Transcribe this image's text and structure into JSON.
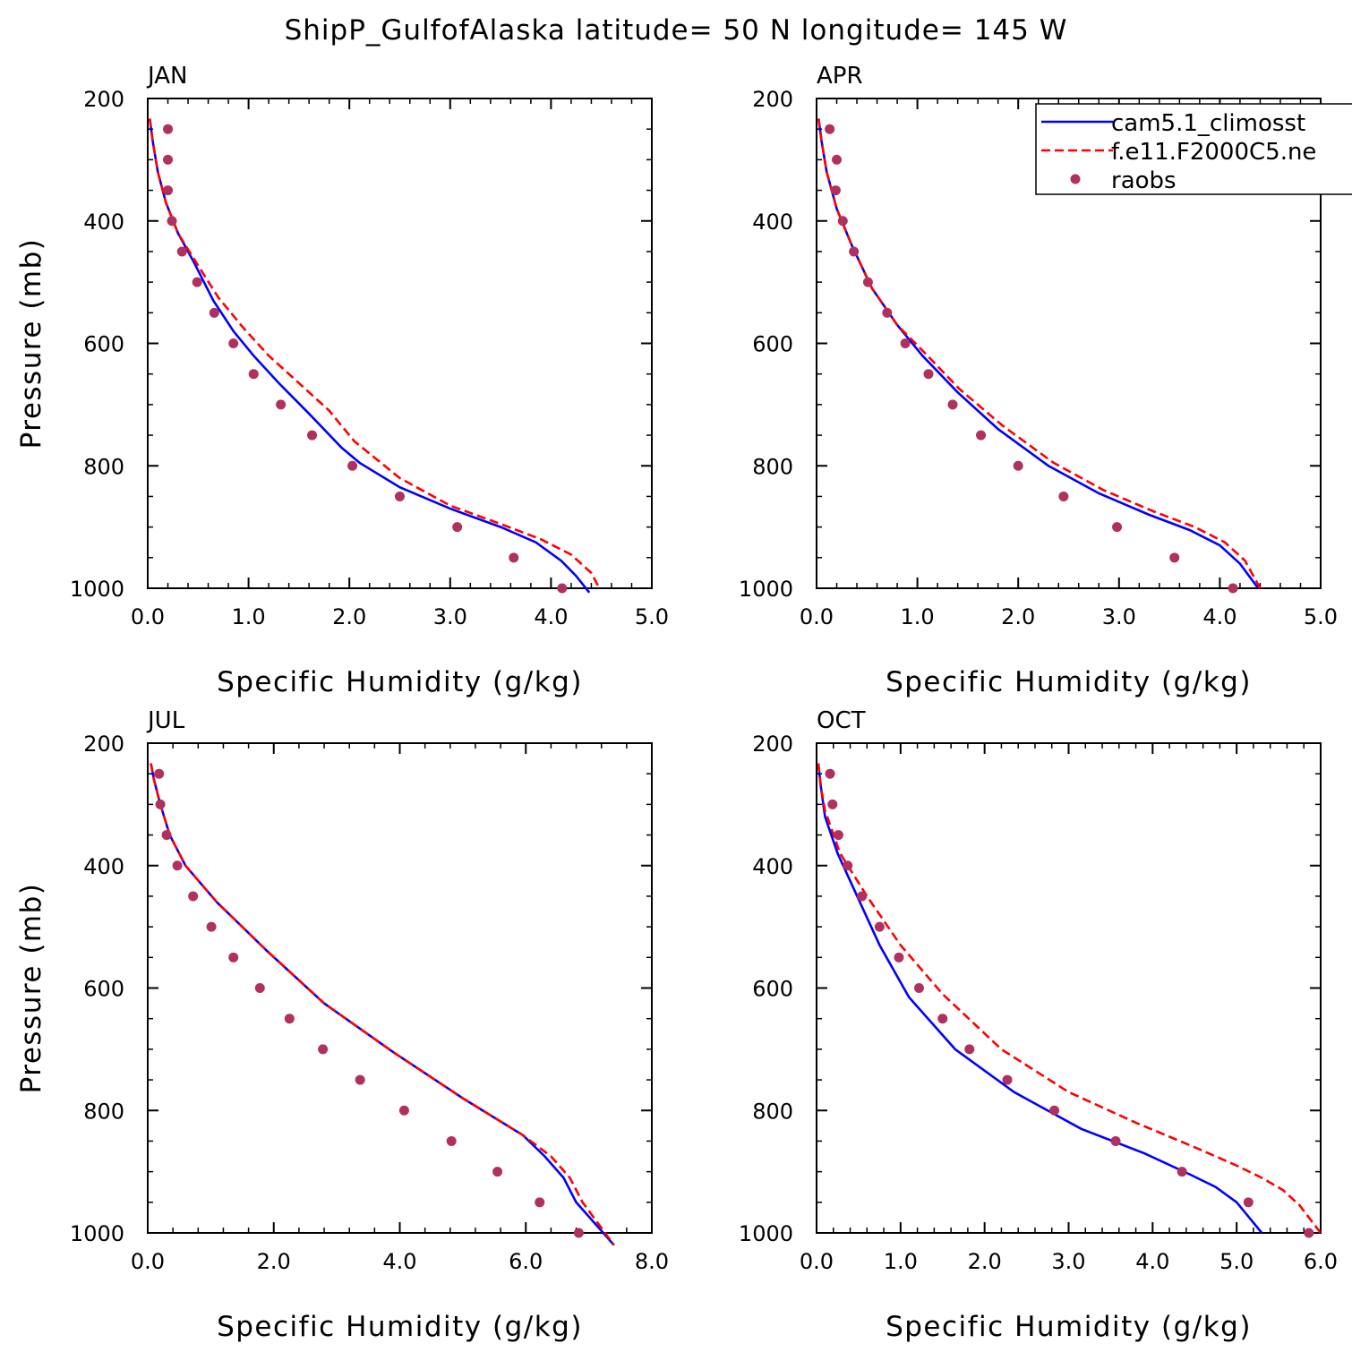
{
  "title": "ShipP_GulfofAlaska  latitude= 50 N longitude= 145 W",
  "legend": {
    "entries": [
      {
        "label": "cam5.1_climosst",
        "style": "solid",
        "color": "#0000ff"
      },
      {
        "label": "f.e11.F2000C5.ne",
        "style": "dashed",
        "color": "#ff0000"
      },
      {
        "label": "raobs",
        "style": "marker",
        "color": "#b03060"
      }
    ]
  },
  "chart_data": [
    {
      "type": "line",
      "panel": "JAN",
      "xlabel": "Specific Humidity (g/kg)",
      "ylabel": "Pressure (mb)",
      "xlim": [
        0,
        5
      ],
      "ylim": [
        200,
        1000
      ],
      "y_inverted": true,
      "xticks": [
        "0.0",
        "1.0",
        "2.0",
        "3.0",
        "4.0",
        "5.0"
      ],
      "yticks": [
        "200",
        "400",
        "600",
        "800",
        "1000"
      ],
      "series": [
        {
          "name": "cam5.1_climosst",
          "color": "#0000ff",
          "style": "solid",
          "points": [
            [
              0.02,
              233
            ],
            [
              0.05,
              270
            ],
            [
              0.1,
              320
            ],
            [
              0.18,
              370
            ],
            [
              0.3,
              420
            ],
            [
              0.45,
              465
            ],
            [
              0.65,
              530
            ],
            [
              0.85,
              580
            ],
            [
              1.05,
              620
            ],
            [
              1.3,
              665
            ],
            [
              1.6,
              715
            ],
            [
              1.92,
              770
            ],
            [
              2.1,
              795
            ],
            [
              2.5,
              835
            ],
            [
              3.0,
              870
            ],
            [
              3.5,
              900
            ],
            [
              3.85,
              925
            ],
            [
              4.1,
              955
            ],
            [
              4.25,
              980
            ],
            [
              4.38,
              1007
            ]
          ]
        },
        {
          "name": "f.e11.F2000C5.ne",
          "color": "#ff0000",
          "style": "dashed",
          "points": [
            [
              0.02,
              233
            ],
            [
              0.05,
              270
            ],
            [
              0.1,
              320
            ],
            [
              0.18,
              370
            ],
            [
              0.3,
              420
            ],
            [
              0.47,
              465
            ],
            [
              0.7,
              525
            ],
            [
              0.95,
              575
            ],
            [
              1.2,
              620
            ],
            [
              1.5,
              665
            ],
            [
              1.8,
              710
            ],
            [
              2.05,
              760
            ],
            [
              2.5,
              820
            ],
            [
              3.0,
              865
            ],
            [
              3.5,
              895
            ],
            [
              3.9,
              920
            ],
            [
              4.2,
              945
            ],
            [
              4.4,
              975
            ],
            [
              4.48,
              1000
            ]
          ]
        },
        {
          "name": "raobs",
          "color": "#b03060",
          "style": "marker",
          "points": [
            [
              0.2,
              250
            ],
            [
              0.2,
              300
            ],
            [
              0.2,
              350
            ],
            [
              0.24,
              400
            ],
            [
              0.34,
              450
            ],
            [
              0.49,
              500
            ],
            [
              0.66,
              550
            ],
            [
              0.85,
              600
            ],
            [
              1.05,
              650
            ],
            [
              1.32,
              700
            ],
            [
              1.63,
              750
            ],
            [
              2.03,
              800
            ],
            [
              2.5,
              850
            ],
            [
              3.07,
              900
            ],
            [
              3.63,
              950
            ],
            [
              4.11,
              1000
            ]
          ]
        }
      ]
    },
    {
      "type": "line",
      "panel": "APR",
      "xlabel": "Specific Humidity (g/kg)",
      "ylabel": "",
      "xlim": [
        0,
        5
      ],
      "ylim": [
        200,
        1000
      ],
      "y_inverted": true,
      "xticks": [
        "0.0",
        "1.0",
        "2.0",
        "3.0",
        "4.0",
        "5.0"
      ],
      "yticks": [
        "200",
        "400",
        "600",
        "800",
        "1000"
      ],
      "series": [
        {
          "name": "cam5.1_climosst",
          "color": "#0000ff",
          "style": "solid",
          "points": [
            [
              0.02,
              233
            ],
            [
              0.05,
              270
            ],
            [
              0.1,
              320
            ],
            [
              0.2,
              380
            ],
            [
              0.35,
              440
            ],
            [
              0.55,
              510
            ],
            [
              0.8,
              570
            ],
            [
              1.05,
              620
            ],
            [
              1.4,
              680
            ],
            [
              1.8,
              740
            ],
            [
              2.3,
              800
            ],
            [
              2.8,
              845
            ],
            [
              3.3,
              880
            ],
            [
              3.7,
              905
            ],
            [
              4.0,
              930
            ],
            [
              4.2,
              960
            ],
            [
              4.38,
              1000
            ]
          ]
        },
        {
          "name": "f.e11.F2000C5.ne",
          "color": "#ff0000",
          "style": "dashed",
          "points": [
            [
              0.02,
              233
            ],
            [
              0.05,
              270
            ],
            [
              0.1,
              320
            ],
            [
              0.2,
              380
            ],
            [
              0.35,
              440
            ],
            [
              0.55,
              510
            ],
            [
              0.8,
              570
            ],
            [
              1.07,
              615
            ],
            [
              1.42,
              675
            ],
            [
              1.85,
              735
            ],
            [
              2.35,
              795
            ],
            [
              2.85,
              840
            ],
            [
              3.35,
              875
            ],
            [
              3.75,
              900
            ],
            [
              4.05,
              925
            ],
            [
              4.25,
              955
            ],
            [
              4.4,
              1000
            ]
          ]
        },
        {
          "name": "raobs",
          "color": "#b03060",
          "style": "marker",
          "points": [
            [
              0.13,
              250
            ],
            [
              0.2,
              300
            ],
            [
              0.19,
              350
            ],
            [
              0.26,
              400
            ],
            [
              0.37,
              450
            ],
            [
              0.51,
              500
            ],
            [
              0.7,
              550
            ],
            [
              0.88,
              600
            ],
            [
              1.11,
              650
            ],
            [
              1.35,
              700
            ],
            [
              1.63,
              750
            ],
            [
              2.0,
              800
            ],
            [
              2.45,
              850
            ],
            [
              2.98,
              900
            ],
            [
              3.55,
              950
            ],
            [
              4.13,
              1000
            ]
          ]
        }
      ]
    },
    {
      "type": "line",
      "panel": "JUL",
      "xlabel": "Specific Humidity (g/kg)",
      "ylabel": "Pressure (mb)",
      "xlim": [
        0,
        8
      ],
      "ylim": [
        200,
        1000
      ],
      "y_inverted": true,
      "xticks": [
        "0.0",
        "2.0",
        "4.0",
        "6.0",
        "8.0"
      ],
      "yticks": [
        "200",
        "400",
        "600",
        "800",
        "1000"
      ],
      "series": [
        {
          "name": "cam5.1_climosst",
          "color": "#0000ff",
          "style": "solid",
          "points": [
            [
              0.05,
              233
            ],
            [
              0.1,
              260
            ],
            [
              0.2,
              300
            ],
            [
              0.35,
              350
            ],
            [
              0.6,
              400
            ],
            [
              1.1,
              460
            ],
            [
              1.9,
              540
            ],
            [
              2.8,
              625
            ],
            [
              3.9,
              705
            ],
            [
              5.0,
              780
            ],
            [
              5.95,
              840
            ],
            [
              6.3,
              875
            ],
            [
              6.6,
              910
            ],
            [
              6.8,
              950
            ],
            [
              7.1,
              985
            ],
            [
              7.4,
              1020
            ]
          ]
        },
        {
          "name": "f.e11.F2000C5.ne",
          "color": "#ff0000",
          "style": "dashed",
          "points": [
            [
              0.05,
              233
            ],
            [
              0.1,
              260
            ],
            [
              0.2,
              300
            ],
            [
              0.35,
              350
            ],
            [
              0.6,
              400
            ],
            [
              1.1,
              460
            ],
            [
              1.9,
              540
            ],
            [
              2.8,
              625
            ],
            [
              3.9,
              705
            ],
            [
              5.0,
              780
            ],
            [
              5.95,
              840
            ],
            [
              6.4,
              875
            ],
            [
              6.7,
              910
            ],
            [
              6.9,
              950
            ],
            [
              7.15,
              985
            ],
            [
              7.4,
              1020
            ]
          ]
        },
        {
          "name": "raobs",
          "color": "#b03060",
          "style": "marker",
          "points": [
            [
              0.18,
              250
            ],
            [
              0.2,
              300
            ],
            [
              0.3,
              350
            ],
            [
              0.47,
              400
            ],
            [
              0.72,
              450
            ],
            [
              1.01,
              500
            ],
            [
              1.36,
              550
            ],
            [
              1.78,
              600
            ],
            [
              2.25,
              650
            ],
            [
              2.78,
              700
            ],
            [
              3.37,
              750
            ],
            [
              4.07,
              800
            ],
            [
              4.82,
              850
            ],
            [
              5.55,
              900
            ],
            [
              6.22,
              950
            ],
            [
              6.84,
              1000
            ]
          ]
        }
      ]
    },
    {
      "type": "line",
      "panel": "OCT",
      "xlabel": "Specific Humidity (g/kg)",
      "ylabel": "",
      "xlim": [
        0,
        6
      ],
      "ylim": [
        200,
        1000
      ],
      "y_inverted": true,
      "xticks": [
        "0.0",
        "1.0",
        "2.0",
        "3.0",
        "4.0",
        "5.0",
        "6.0"
      ],
      "yticks": [
        "200",
        "400",
        "600",
        "800",
        "1000"
      ],
      "series": [
        {
          "name": "cam5.1_climosst",
          "color": "#0000ff",
          "style": "solid",
          "points": [
            [
              0.02,
              233
            ],
            [
              0.05,
              270
            ],
            [
              0.1,
              320
            ],
            [
              0.25,
              380
            ],
            [
              0.45,
              440
            ],
            [
              0.75,
              530
            ],
            [
              1.1,
              615
            ],
            [
              1.65,
              700
            ],
            [
              2.35,
              770
            ],
            [
              3.15,
              830
            ],
            [
              3.9,
              870
            ],
            [
              4.45,
              905
            ],
            [
              4.75,
              925
            ],
            [
              5.0,
              950
            ],
            [
              5.3,
              1000
            ]
          ]
        },
        {
          "name": "f.e11.F2000C5.ne",
          "color": "#ff0000",
          "style": "dashed",
          "points": [
            [
              0.02,
              233
            ],
            [
              0.05,
              270
            ],
            [
              0.1,
              310
            ],
            [
              0.28,
              380
            ],
            [
              0.6,
              450
            ],
            [
              1.0,
              530
            ],
            [
              1.5,
              610
            ],
            [
              2.2,
              700
            ],
            [
              3.0,
              770
            ],
            [
              3.8,
              820
            ],
            [
              4.5,
              860
            ],
            [
              5.0,
              890
            ],
            [
              5.3,
              910
            ],
            [
              5.55,
              930
            ],
            [
              5.75,
              955
            ],
            [
              6.0,
              1000
            ]
          ]
        },
        {
          "name": "raobs",
          "color": "#b03060",
          "style": "marker",
          "points": [
            [
              0.16,
              250
            ],
            [
              0.19,
              300
            ],
            [
              0.26,
              350
            ],
            [
              0.37,
              400
            ],
            [
              0.54,
              450
            ],
            [
              0.75,
              500
            ],
            [
              0.98,
              550
            ],
            [
              1.22,
              600
            ],
            [
              1.5,
              650
            ],
            [
              1.82,
              700
            ],
            [
              2.27,
              750
            ],
            [
              2.83,
              800
            ],
            [
              3.56,
              850
            ],
            [
              4.35,
              900
            ],
            [
              5.14,
              950
            ],
            [
              5.86,
              1000
            ]
          ]
        }
      ]
    }
  ]
}
